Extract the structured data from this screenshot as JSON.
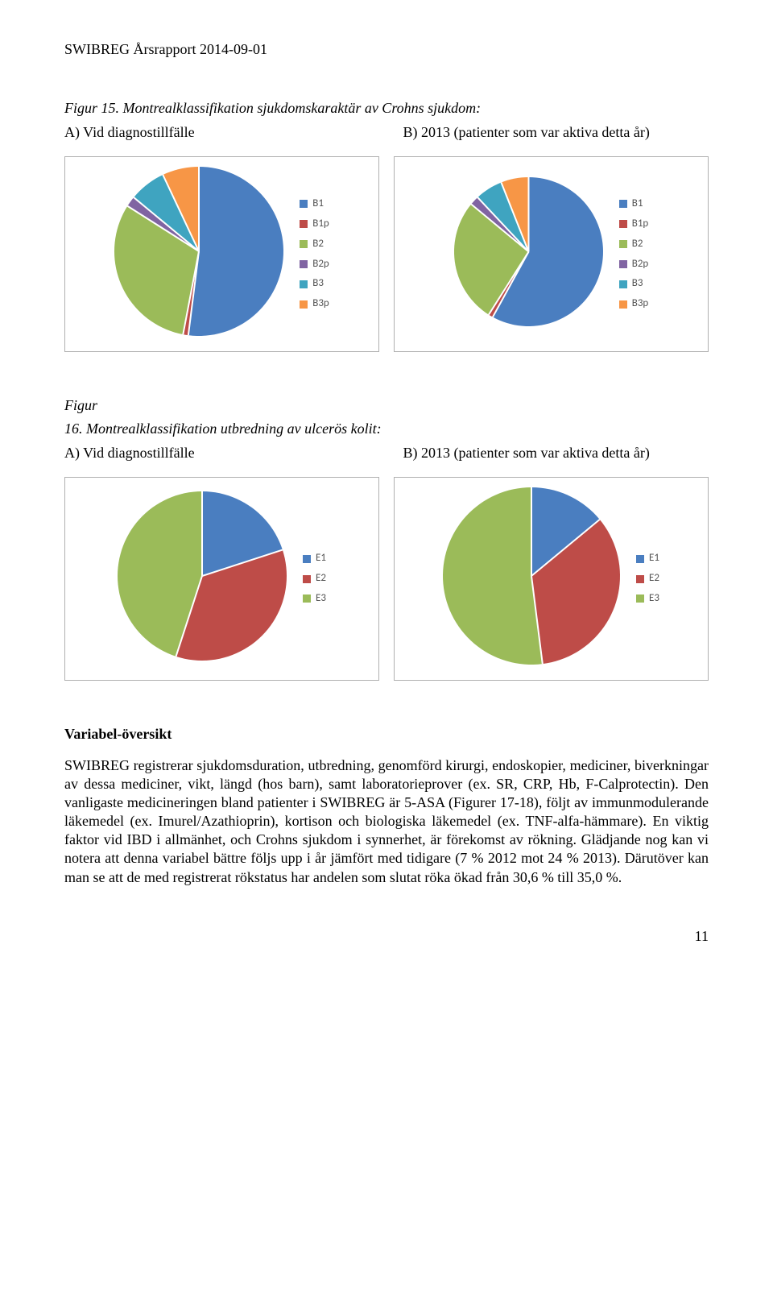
{
  "header": "SWIBREG Årsrapport 2014-09-01",
  "fig15": {
    "label": "Figur 15.",
    "title": "Montrealklassifikation sjukdomskaraktär av Crohns sjukdom:",
    "itemA": "A) Vid diagnostillfälle",
    "itemB": "B) 2013 (patienter som var aktiva detta år)",
    "legend": [
      "B1",
      "B1p",
      "B2",
      "B2p",
      "B3",
      "B3p"
    ],
    "colors": [
      "#4a7ec0",
      "#be4c48",
      "#9bbb59",
      "#8064a2",
      "#3fa4c0",
      "#f79646"
    ],
    "chartA": {
      "values": [
        52,
        1,
        31,
        2,
        7,
        7
      ],
      "size": 210
    },
    "chartB": {
      "values": [
        58,
        1,
        27,
        2,
        6,
        6
      ],
      "size": 185
    }
  },
  "fig16": {
    "label_prefix": "Figur",
    "label_num": "16.",
    "title": "Montrealklassifikation utbredning av ulcerös kolit:",
    "itemA": "A) Vid diagnostillfälle",
    "itemB": "B) 2013 (patienter som var aktiva detta år)",
    "legend": [
      "E1",
      "E2",
      "E3"
    ],
    "colors": [
      "#4a7ec0",
      "#be4c48",
      "#9bbb59"
    ],
    "chartA": {
      "values": [
        20,
        35,
        45
      ],
      "size": 210
    },
    "chartB": {
      "values": [
        14,
        34,
        52
      ],
      "size": 220
    }
  },
  "section": {
    "heading": "Variabel-översikt",
    "body": "SWIBREG registrerar sjukdomsduration, utbredning, genomförd kirurgi, endoskopier, mediciner, biverkningar av dessa mediciner, vikt, längd (hos barn), samt laboratorieprover (ex. SR, CRP, Hb, F-Calprotectin). Den vanligaste medicineringen bland patienter i SWIBREG är 5-ASA (Figurer 17-18), följt av immunmodulerande läkemedel (ex. Imurel/Azathioprin), kortison och biologiska läkemedel (ex. TNF-alfa-hämmare). En viktig faktor vid IBD i allmänhet, och Crohns sjukdom i synnerhet, är förekomst av rökning. Glädjande nog kan vi notera att denna variabel bättre följs upp i år jämfört med tidigare (7 % 2012 mot 24 % 2013). Därutöver kan man se att de med registrerat rökstatus har andelen som slutat röka ökad från 30,6 % till 35,0 %."
  },
  "pagenum": "11",
  "styles": {
    "slice_separator_color": "#ffffff",
    "box_border_color": "#b0b0b0",
    "legend_text_color": "#555555"
  }
}
